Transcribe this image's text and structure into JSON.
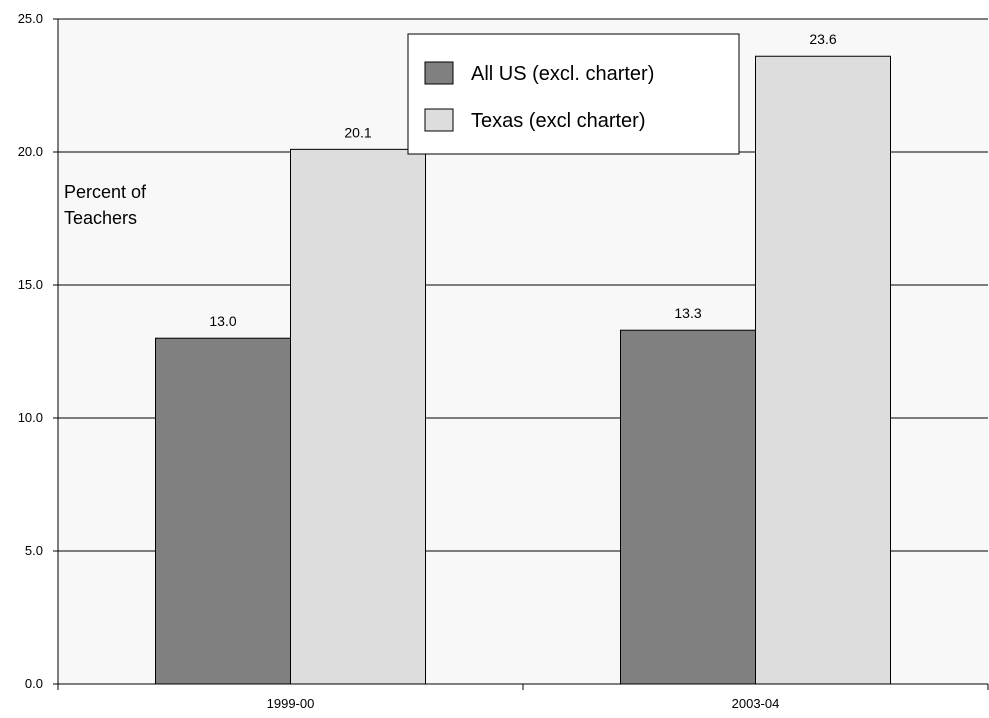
{
  "chart_data": {
    "type": "bar",
    "title": "",
    "xlabel": "",
    "ylabel": "Percent of Teachers",
    "ylabel_lines": [
      "Percent of",
      "Teachers"
    ],
    "categories": [
      "1999-00",
      "2003-04"
    ],
    "series": [
      {
        "name": "All US (excl. charter)",
        "values": [
          13.0,
          13.3
        ],
        "color": "#808080"
      },
      {
        "name": "Texas (excl charter)",
        "values": [
          20.1,
          23.6
        ],
        "color": "#dddddd"
      }
    ],
    "ylim": [
      0,
      25
    ],
    "yticks": [
      0,
      5,
      10,
      15,
      20,
      25
    ],
    "ytick_labels": [
      "0.0",
      "5.0",
      "10.0",
      "15.0",
      "20.0",
      "25.0"
    ],
    "data_labels": [
      [
        "13.0",
        "13.3"
      ],
      [
        "20.1",
        "23.6"
      ]
    ],
    "grid": true,
    "legend_position": "top-right",
    "plot_background": "#f8f8f8",
    "grid_color": "#000000"
  }
}
